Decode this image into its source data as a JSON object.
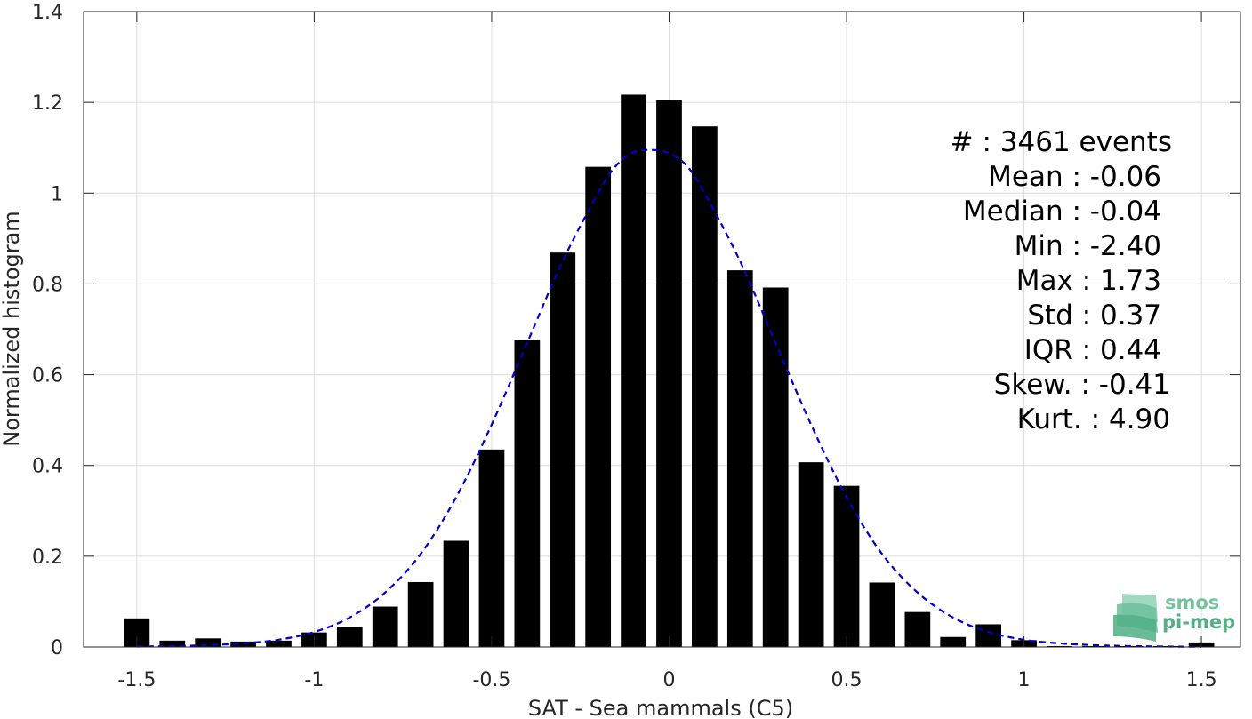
{
  "chart_data": {
    "type": "bar",
    "xlabel": "SAT - Sea mammals (C5)",
    "ylabel": "Normalized histogram",
    "xlim": [
      -1.65,
      1.61
    ],
    "ylim": [
      0,
      1.4
    ],
    "xticks": [
      -1.5,
      -1,
      -0.5,
      0,
      0.5,
      1,
      1.5
    ],
    "xtick_labels": [
      "-1.5",
      "-1",
      "-0.5",
      "0",
      "0.5",
      "1",
      "1.5"
    ],
    "yticks": [
      0,
      0.2,
      0.4,
      0.6,
      0.8,
      1,
      1.2,
      1.4
    ],
    "ytick_labels": [
      "0",
      "0.2",
      "0.4",
      "0.6",
      "0.8",
      "1",
      "1.2",
      "1.4"
    ],
    "grid": true,
    "bar_color": "#000000",
    "fit_color": "#0000cc",
    "bins": [
      -1.5,
      -1.4,
      -1.3,
      -1.2,
      -1.1,
      -1.0,
      -0.9,
      -0.8,
      -0.7,
      -0.6,
      -0.5,
      -0.4,
      -0.3,
      -0.2,
      -0.1,
      0.0,
      0.1,
      0.2,
      0.3,
      0.4,
      0.5,
      0.6,
      0.7,
      0.8,
      0.9,
      1.0,
      1.1,
      1.2,
      1.3,
      1.4,
      1.5
    ],
    "values": [
      0.063,
      0.014,
      0.019,
      0.012,
      0.014,
      0.032,
      0.045,
      0.089,
      0.143,
      0.234,
      0.435,
      0.677,
      0.869,
      1.058,
      1.217,
      1.205,
      1.147,
      0.83,
      0.792,
      0.407,
      0.355,
      0.142,
      0.077,
      0.022,
      0.05,
      0.015,
      0.002,
      0.002,
      0.002,
      0.002,
      0.01
    ],
    "fit": {
      "style": "dashed",
      "x": [
        -1.5,
        -1.4,
        -1.3,
        -1.2,
        -1.1,
        -1.0,
        -0.9,
        -0.8,
        -0.7,
        -0.6,
        -0.5,
        -0.4,
        -0.3,
        -0.2,
        -0.15,
        -0.1,
        -0.05,
        0.0,
        0.05,
        0.1,
        0.2,
        0.3,
        0.4,
        0.5,
        0.6,
        0.7,
        0.8,
        0.9,
        1.0,
        1.1,
        1.2,
        1.3,
        1.4,
        1.5
      ],
      "y": [
        0.001,
        0.002,
        0.004,
        0.008,
        0.016,
        0.033,
        0.065,
        0.12,
        0.205,
        0.33,
        0.49,
        0.67,
        0.85,
        1.0,
        1.06,
        1.09,
        1.095,
        1.088,
        1.06,
        1.0,
        0.85,
        0.67,
        0.49,
        0.33,
        0.205,
        0.12,
        0.065,
        0.033,
        0.016,
        0.008,
        0.004,
        0.002,
        0.001,
        0.0005
      ]
    },
    "stats": [
      {
        "label": "#  ",
        "value": "3461 events"
      },
      {
        "label": "Mean",
        "value": "-0.06"
      },
      {
        "label": "Median",
        "value": "-0.04"
      },
      {
        "label": "Min",
        "value": "-2.40"
      },
      {
        "label": "Max",
        "value": "1.73"
      },
      {
        "label": "Std",
        "value": "0.37"
      },
      {
        "label": "IQR",
        "value": "0.44"
      },
      {
        "label": "Skew.",
        "value": "-0.41"
      },
      {
        "label": "Kurt.",
        "value": "4.90"
      }
    ]
  },
  "logo": {
    "line1": "smos",
    "line2": "pi-mep"
  }
}
